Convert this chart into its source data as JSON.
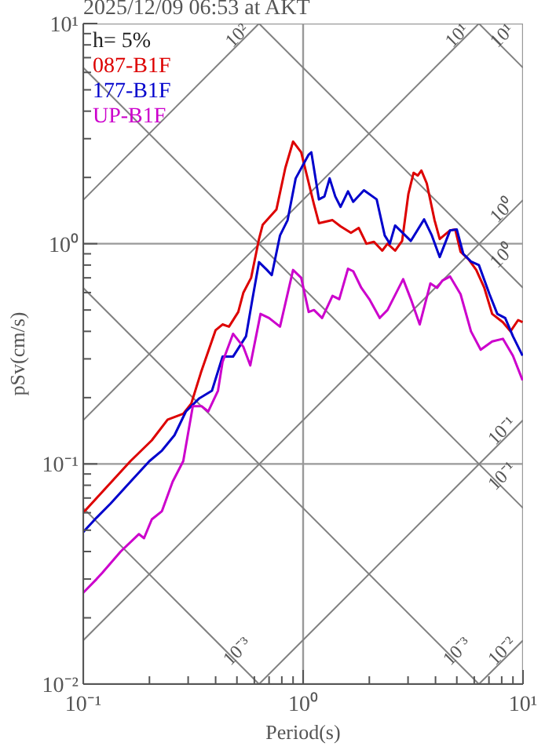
{
  "chart_data": {
    "type": "line",
    "title": "2025/12/09 06:53 at AKT",
    "xlabel": "Period(s)",
    "ylabel": "pSv(cm/s)",
    "log": "xy",
    "grid": true,
    "legend": "top left",
    "marker": "none",
    "line_style": "solid",
    "xlim": [
      0.1,
      10
    ],
    "ylim": [
      0.01,
      10
    ],
    "xticks": [
      {
        "value": 0.1,
        "label": "10⁻¹"
      },
      {
        "value": 0.2,
        "label": null
      },
      {
        "value": 0.3,
        "label": null
      },
      {
        "value": 0.4,
        "label": null
      },
      {
        "value": 0.5,
        "label": null
      },
      {
        "value": 0.6,
        "label": null
      },
      {
        "value": 0.7,
        "label": null
      },
      {
        "value": 0.8,
        "label": null
      },
      {
        "value": 0.9,
        "label": null
      },
      {
        "value": 1,
        "label": "10⁰"
      },
      {
        "value": 2,
        "label": null
      },
      {
        "value": 3,
        "label": null
      },
      {
        "value": 4,
        "label": null
      },
      {
        "value": 5,
        "label": null
      },
      {
        "value": 6,
        "label": null
      },
      {
        "value": 7,
        "label": null
      },
      {
        "value": 8,
        "label": null
      },
      {
        "value": 9,
        "label": null
      },
      {
        "value": 10,
        "label": "10¹"
      }
    ],
    "yticks": [
      {
        "value": 0.01,
        "label": "10⁻²"
      },
      {
        "value": 0.02,
        "label": null
      },
      {
        "value": 0.03,
        "label": null
      },
      {
        "value": 0.04,
        "label": null
      },
      {
        "value": 0.05,
        "label": null
      },
      {
        "value": 0.06,
        "label": null
      },
      {
        "value": 0.07,
        "label": null
      },
      {
        "value": 0.08,
        "label": null
      },
      {
        "value": 0.09,
        "label": null
      },
      {
        "value": 0.1,
        "label": "10⁻¹"
      },
      {
        "value": 0.2,
        "label": null
      },
      {
        "value": 0.3,
        "label": null
      },
      {
        "value": 0.4,
        "label": null
      },
      {
        "value": 0.5,
        "label": null
      },
      {
        "value": 0.6,
        "label": null
      },
      {
        "value": 0.7,
        "label": null
      },
      {
        "value": 0.8,
        "label": null
      },
      {
        "value": 0.9,
        "label": null
      },
      {
        "value": 1,
        "label": "10⁰"
      },
      {
        "value": 2,
        "label": null
      },
      {
        "value": 3,
        "label": null
      },
      {
        "value": 4,
        "label": null
      },
      {
        "value": 5,
        "label": null
      },
      {
        "value": 6,
        "label": null
      },
      {
        "value": 7,
        "label": null
      },
      {
        "value": 8,
        "label": null
      },
      {
        "value": 9,
        "label": null
      },
      {
        "value": 10,
        "label": "10¹"
      }
    ],
    "annotations": [
      "h= 5%",
      {
        "text": "10²",
        "x": 0.5,
        "y": 7.9
      },
      {
        "text": "10¹",
        "x": 5,
        "y": 7.9
      },
      {
        "text": "10¹",
        "x": 8,
        "y": 7.875
      },
      {
        "text": "10⁰",
        "x": 8,
        "y": 1.264
      },
      {
        "text": "10⁰",
        "x": 8,
        "y": 0.7875
      },
      {
        "text": "10⁻¹",
        "x": 8,
        "y": 0.1264
      },
      {
        "text": "10⁻¹",
        "x": 8,
        "y": 0.07875
      },
      {
        "text": "10⁻³",
        "x": 0.5,
        "y": 0.0126
      },
      {
        "text": "10⁻³",
        "x": 5,
        "y": 0.0126
      },
      {
        "text": "10⁻²",
        "x": 8,
        "y": 0.01264
      }
    ],
    "series": [
      {
        "color": "#808080",
        "x": [
          0.1,
          10
        ],
        "values": [
          0.0158,
          1.58
        ]
      },
      {
        "color": "#808080",
        "x": [
          0.1,
          6.3
        ],
        "values": [
          0.158,
          10
        ]
      },
      {
        "color": "#808080",
        "x": [
          0.1,
          0.63
        ],
        "values": [
          1.58,
          10
        ]
      },
      {
        "color": "#808080",
        "x": [
          0.63,
          10
        ],
        "values": [
          0.01,
          0.158
        ]
      },
      {
        "color": "#808080",
        "x": [
          6.3,
          10
        ],
        "values": [
          0.01,
          0.0158
        ]
      },
      {
        "color": "#808080",
        "x": [
          0.63,
          10
        ],
        "values": [
          10,
          0.63
        ]
      },
      {
        "color": "#808080",
        "x": [
          6.3,
          10
        ],
        "values": [
          10,
          6.3
        ]
      },
      {
        "color": "#808080",
        "x": [
          0.1,
          10
        ],
        "values": [
          6.3,
          0.063
        ]
      },
      {
        "color": "#808080",
        "x": [
          0.1,
          6.3
        ],
        "values": [
          0.63,
          0.01
        ]
      },
      {
        "color": "#808080",
        "x": [
          0.1,
          0.63
        ],
        "values": [
          0.063,
          0.01
        ]
      },
      {
        "name": "087-B1F",
        "color": "#dd0000",
        "x": [
          0.1,
          0.164,
          0.205,
          0.242,
          0.285,
          0.31,
          0.343,
          0.4,
          0.43,
          0.46,
          0.507,
          0.535,
          0.58,
          0.63,
          0.655,
          0.756,
          0.83,
          0.9,
          0.98,
          1.12,
          1.18,
          1.36,
          1.48,
          1.65,
          1.79,
          1.94,
          2.1,
          2.29,
          2.42,
          2.62,
          2.82,
          3.01,
          3.18,
          3.32,
          3.45,
          3.65,
          3.96,
          4.18,
          4.66,
          4.92,
          5.2,
          5.65,
          6.13,
          6.67,
          7.24,
          8.1,
          8.77,
          9.5,
          9.95
        ],
        "values": [
          0.06,
          0.103,
          0.128,
          0.159,
          0.169,
          0.188,
          0.26,
          0.405,
          0.43,
          0.42,
          0.49,
          0.6,
          0.7,
          1.05,
          1.22,
          1.43,
          2.21,
          2.91,
          2.6,
          1.51,
          1.24,
          1.28,
          1.2,
          1.12,
          1.18,
          1.0,
          1.02,
          0.93,
          1.0,
          0.93,
          1.03,
          1.68,
          2.1,
          2.04,
          2.15,
          1.88,
          1.28,
          1.05,
          1.15,
          1.16,
          0.92,
          0.85,
          0.76,
          0.63,
          0.48,
          0.44,
          0.4,
          0.45,
          0.44
        ]
      },
      {
        "name": "177-B1F",
        "color": "#0000cc",
        "x": [
          0.1,
          0.115,
          0.133,
          0.164,
          0.2,
          0.228,
          0.26,
          0.293,
          0.336,
          0.385,
          0.43,
          0.48,
          0.55,
          0.588,
          0.63,
          0.685,
          0.72,
          0.785,
          0.85,
          0.925,
          1.06,
          1.09,
          1.18,
          1.25,
          1.32,
          1.4,
          1.48,
          1.6,
          1.69,
          1.89,
          2.16,
          2.35,
          2.48,
          2.62,
          3.09,
          3.55,
          3.85,
          4.18,
          4.66,
          5.0,
          5.35,
          5.8,
          6.3,
          7.04,
          7.64,
          8.3,
          9.0,
          9.95
        ],
        "values": [
          0.049,
          0.057,
          0.066,
          0.083,
          0.103,
          0.115,
          0.135,
          0.173,
          0.198,
          0.215,
          0.307,
          0.307,
          0.38,
          0.56,
          0.825,
          0.76,
          0.72,
          1.09,
          1.28,
          1.98,
          2.54,
          2.6,
          1.59,
          1.64,
          1.98,
          1.64,
          1.47,
          1.73,
          1.55,
          1.75,
          1.59,
          1.09,
          1.0,
          1.21,
          1.03,
          1.29,
          1.09,
          0.87,
          1.15,
          1.16,
          0.9,
          0.83,
          0.8,
          0.59,
          0.48,
          0.46,
          0.38,
          0.31
        ]
      },
      {
        "name": "UP-B1F",
        "color": "#cc00cc",
        "x": [
          0.1,
          0.115,
          0.122,
          0.148,
          0.179,
          0.189,
          0.205,
          0.228,
          0.255,
          0.285,
          0.315,
          0.345,
          0.37,
          0.41,
          0.43,
          0.48,
          0.535,
          0.575,
          0.64,
          0.7,
          0.785,
          0.9,
          0.98,
          1.06,
          1.12,
          1.22,
          1.36,
          1.46,
          1.6,
          1.69,
          1.84,
          2.0,
          2.23,
          2.42,
          2.85,
          3.09,
          3.39,
          3.79,
          4.07,
          4.3,
          4.66,
          5.2,
          5.8,
          6.42,
          7.24,
          8.1,
          9.0,
          9.95
        ],
        "values": [
          0.026,
          0.03,
          0.032,
          0.04,
          0.048,
          0.046,
          0.056,
          0.061,
          0.083,
          0.103,
          0.183,
          0.183,
          0.173,
          0.215,
          0.29,
          0.39,
          0.34,
          0.28,
          0.48,
          0.46,
          0.42,
          0.76,
          0.7,
          0.49,
          0.5,
          0.46,
          0.58,
          0.56,
          0.77,
          0.75,
          0.63,
          0.56,
          0.46,
          0.5,
          0.69,
          0.56,
          0.43,
          0.66,
          0.63,
          0.68,
          0.71,
          0.59,
          0.4,
          0.33,
          0.36,
          0.37,
          0.31,
          0.24
        ]
      }
    ]
  }
}
